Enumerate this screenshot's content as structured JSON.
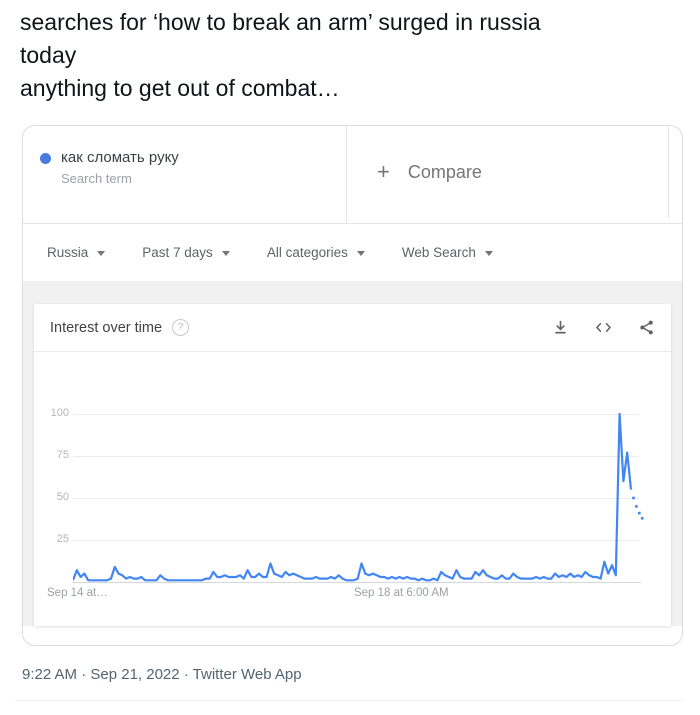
{
  "tweet": {
    "lines": [
      "searches for ‘how to break an arm’ surged in russia",
      "today",
      "anything to get out of combat…"
    ],
    "timestamp": "9:22 AM · Sep 21, 2022 · Twitter Web App"
  },
  "trends": {
    "term": {
      "label": "как сломать руку",
      "sublabel": "Search term"
    },
    "compare": {
      "plus": "+",
      "label": "Compare"
    },
    "filters": [
      {
        "label": "Russia"
      },
      {
        "label": "Past 7 days"
      },
      {
        "label": "All categories"
      },
      {
        "label": "Web Search"
      }
    ],
    "panel_title": "Interest over time",
    "icons": {
      "help": "?",
      "toolbar": [
        "download-icon",
        "embed-icon",
        "share-icon"
      ]
    }
  },
  "colors": {
    "accent_blue": "#4285f4",
    "term_dot": "#4a7bdf",
    "grid": "#ececec"
  },
  "chart_data": {
    "type": "line",
    "title": "Interest over time",
    "series_name": "как сломать руку",
    "geo": "Russia",
    "time_range": "Past 7 days",
    "category": "All categories",
    "search_type": "Web Search",
    "ylim": [
      0,
      100
    ],
    "yticks": [
      100,
      75,
      50,
      25
    ],
    "xticks": [
      {
        "label": "Sep 14 at…",
        "position": 0,
        "align": "left"
      },
      {
        "label": "Sep 18 at 6:00 AM",
        "position": 0.58,
        "align": "center"
      }
    ],
    "line_color": "#4285f4",
    "grid_on": true,
    "values": [
      1,
      7,
      3,
      5,
      1,
      1,
      1,
      1,
      1,
      1,
      2,
      9,
      5,
      4,
      2,
      3,
      2,
      2,
      3,
      1,
      1,
      1,
      1,
      4,
      2,
      1,
      1,
      1,
      1,
      1,
      1,
      1,
      1,
      1,
      1,
      2,
      2,
      6,
      3,
      3,
      4,
      3,
      3,
      3,
      4,
      2,
      7,
      3,
      3,
      5,
      3,
      3,
      11,
      5,
      4,
      3,
      6,
      4,
      5,
      4,
      3,
      2,
      2,
      2,
      3,
      2,
      2,
      2,
      3,
      2,
      4,
      2,
      1,
      1,
      1,
      2,
      11,
      5,
      4,
      5,
      4,
      3,
      3,
      2,
      3,
      2,
      3,
      2,
      3,
      2,
      2,
      1,
      2,
      1,
      1,
      2,
      1,
      6,
      4,
      3,
      2,
      7,
      3,
      2,
      2,
      2,
      6,
      4,
      7,
      4,
      3,
      2,
      2,
      4,
      2,
      2,
      5,
      3,
      2,
      2,
      2,
      2,
      3,
      2,
      3,
      2,
      2,
      5,
      3,
      4,
      3,
      5,
      3,
      4,
      3,
      6,
      4,
      3,
      3,
      2,
      12,
      5,
      10,
      4,
      100,
      60,
      77,
      55
    ],
    "dotted_tail_values": [
      50,
      45,
      41,
      38
    ]
  }
}
